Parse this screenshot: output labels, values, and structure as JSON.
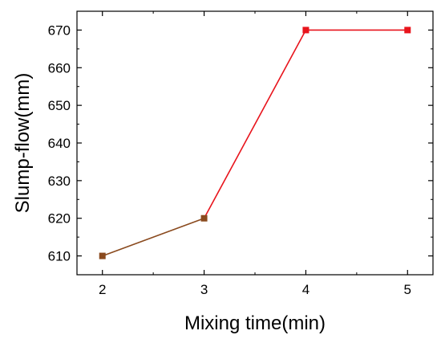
{
  "chart_data": {
    "type": "line",
    "title": "",
    "xlabel": "Mixing time(min)",
    "ylabel": "Slump-flow(mm)",
    "xlim": [
      1.75,
      5.25
    ],
    "ylim": [
      605,
      675
    ],
    "x_ticks": [
      2,
      3,
      4,
      5
    ],
    "y_ticks": [
      610,
      620,
      630,
      640,
      650,
      660,
      670
    ],
    "legend": "none",
    "grid": false,
    "series": [
      {
        "x": [
          2,
          3,
          4,
          5
        ],
        "values": [
          610,
          620,
          670,
          670
        ],
        "marker": "square",
        "line_color": "#e8141c",
        "marker_color": "#e8141c",
        "early_segment_color": "#8a4a1e"
      }
    ]
  }
}
